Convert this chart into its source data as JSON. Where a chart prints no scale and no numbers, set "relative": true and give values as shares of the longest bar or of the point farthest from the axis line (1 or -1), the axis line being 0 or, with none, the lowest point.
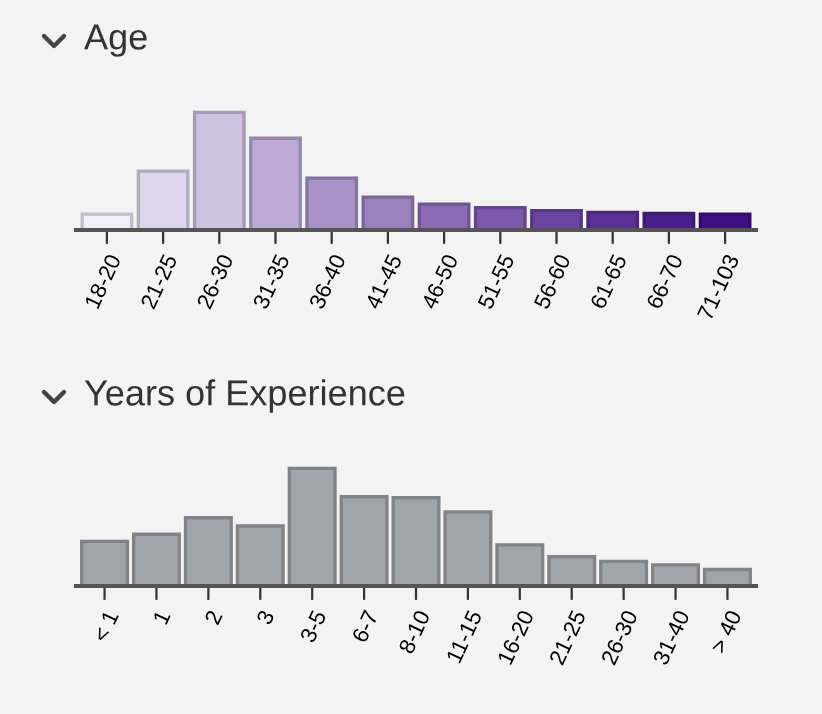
{
  "chart_data": [
    {
      "type": "bar",
      "title": "Age",
      "relative": true,
      "categories": [
        "18-20",
        "21-25",
        "26-30",
        "31-35",
        "36-40",
        "41-45",
        "46-50",
        "51-55",
        "56-60",
        "61-65",
        "66-70",
        "71-103"
      ],
      "values": [
        0.135,
        0.5,
        1,
        0.78,
        0.44,
        0.28,
        0.22,
        0.19,
        0.165,
        0.15,
        0.14,
        0.135
      ],
      "colors": [
        "#f1eff7",
        "#dcd6ec",
        "#cfc2e0",
        "#bcaad4",
        "#a892c8",
        "#9b80c0",
        "#8b6bb5",
        "#7e58ac",
        "#6c45a2",
        "#5c3196",
        "#4d1f8c",
        "#3f0f82"
      ]
    },
    {
      "type": "bar",
      "title": "Years of Experience",
      "relative": true,
      "categories": [
        "< 1",
        "1",
        "2",
        "3",
        "3-5",
        "6-7",
        "8-10",
        "11-15",
        "16-20",
        "21-25",
        "26-30",
        "31-40",
        "> 40"
      ],
      "values": [
        0.38,
        0.44,
        0.58,
        0.51,
        1,
        0.76,
        0.75,
        0.63,
        0.35,
        0.25,
        0.21,
        0.18,
        0.14
      ],
      "color": "#a1a4aa"
    }
  ]
}
